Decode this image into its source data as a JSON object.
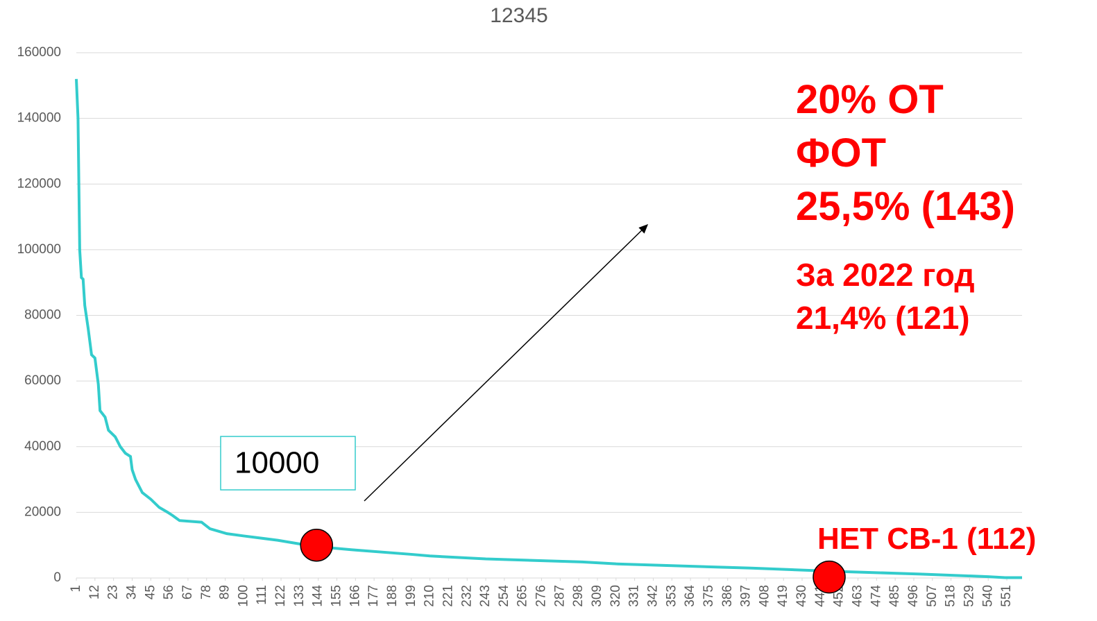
{
  "chart_data": {
    "type": "line",
    "title": "12345",
    "x": [
      1,
      2,
      3,
      4,
      5,
      6,
      8,
      10,
      12,
      14,
      15,
      18,
      20,
      24,
      27,
      30,
      33,
      34,
      36,
      40,
      45,
      50,
      55,
      58,
      62,
      75,
      80,
      90,
      100,
      120,
      135,
      144,
      166,
      199,
      210,
      243,
      300,
      320,
      400,
      450,
      500,
      540,
      550,
      560
    ],
    "series": [
      {
        "name": "12345",
        "color": "#33cccc",
        "values": [
          152000,
          140000,
          100000,
          91500,
          91000,
          83000,
          76000,
          68000,
          67000,
          59000,
          51000,
          49000,
          45000,
          43000,
          40000,
          38000,
          37000,
          33000,
          30000,
          26000,
          24000,
          21500,
          20000,
          19000,
          17500,
          17000,
          15000,
          13500,
          12800,
          11500,
          10200,
          9500,
          8500,
          7200,
          6700,
          5800,
          4900,
          4300,
          3000,
          2000,
          1200,
          400,
          100,
          100
        ]
      }
    ],
    "xlim": [
      1,
      560
    ],
    "xticks": [
      1,
      12,
      23,
      34,
      45,
      56,
      67,
      78,
      89,
      100,
      111,
      122,
      133,
      144,
      155,
      166,
      177,
      188,
      199,
      210,
      221,
      232,
      243,
      254,
      265,
      276,
      287,
      298,
      309,
      320,
      331,
      342,
      353,
      364,
      375,
      386,
      397,
      408,
      419,
      430,
      441,
      452,
      463,
      474,
      485,
      496,
      507,
      518,
      529,
      540,
      551
    ],
    "ylim": [
      0,
      160000
    ],
    "yticks": [
      0,
      20000,
      40000,
      60000,
      80000,
      100000,
      120000,
      140000,
      160000
    ],
    "grid": true,
    "markers": [
      {
        "x": 143,
        "y": 10000
      },
      {
        "x": 446,
        "y": 300
      }
    ],
    "annotations": {
      "box": "10000",
      "main": [
        "20% ОТ",
        "ФОТ",
        "25,5% (143)"
      ],
      "year": [
        "За 2022 год",
        "21,4% (121)"
      ],
      "bottom": "НЕТ СВ-1 (112)"
    }
  }
}
